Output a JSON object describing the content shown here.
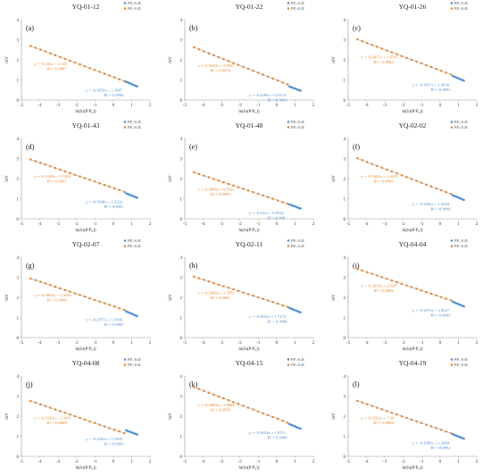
{
  "colors": {
    "blue": "#4f8fd0",
    "orange": "#e8862c",
    "line": "#8c8c8c",
    "axis": "#999999"
  },
  "legend": [
    {
      "series": "blue",
      "label": "P/P₀>0.45"
    },
    {
      "series": "orange",
      "label": "P/P₀<0.45"
    }
  ],
  "axis_labels": {
    "x": "ln(ln(P/P₀))",
    "y": "lnV"
  },
  "chart_data": [
    {
      "id": "YQ-01-12",
      "panel": "(a)",
      "type": "scatter",
      "xlim": [
        -5,
        2
      ],
      "ylim": [
        0,
        4
      ],
      "xticks": [
        "-5",
        "-4",
        "-3",
        "-2",
        "-1",
        "0",
        "1",
        "2"
      ],
      "yticks": [
        "0",
        "1",
        "2",
        "3",
        "4"
      ],
      "orange": {
        "slope": -0.3431,
        "intercept": 1.149,
        "x_start": -4.5,
        "x_end": 0.6,
        "points": 20,
        "eq": "y = -0.343x + 1.149",
        "r2": "R² = 0.9987"
      },
      "blue": {
        "slope": -0.3859,
        "intercept": 1.1807,
        "x_start": 0.7,
        "x_end": 1.3,
        "points": 8,
        "eq": "y = -0.3859x + 1.1807",
        "r2": "R² = 0.9996"
      }
    },
    {
      "id": "YQ-01-22",
      "panel": "(b)",
      "type": "scatter",
      "xlim": [
        -5,
        2
      ],
      "ylim": [
        0,
        4
      ],
      "xticks": [
        "-5",
        "-4",
        "-3",
        "-2",
        "-1",
        "0",
        "1",
        "2"
      ],
      "yticks": [
        "0",
        "1",
        "2",
        "3",
        "4"
      ],
      "orange": {
        "slope": -0.362,
        "intercept": 0.9927,
        "x_start": -4.5,
        "x_end": 0.6,
        "points": 20,
        "eq": "y = -0.3620x + 0.9927",
        "r2": "R² = 0.9978"
      },
      "blue": {
        "slope": -0.3489,
        "intercept": 0.9174,
        "x_start": 0.7,
        "x_end": 1.3,
        "points": 8,
        "eq": "y = -0.3489x + 0.9174",
        "r2": "R² = 0.9963"
      }
    },
    {
      "id": "YQ-01-26",
      "panel": "(c)",
      "type": "scatter",
      "xlim": [
        -5,
        2
      ],
      "ylim": [
        0,
        4
      ],
      "xticks": [
        "-5",
        "-4",
        "-3",
        "-2",
        "-1",
        "0",
        "1",
        "2"
      ],
      "yticks": [
        "0",
        "1",
        "2",
        "3",
        "4"
      ],
      "orange": {
        "slope": -0.3417,
        "intercept": 1.4781,
        "x_start": -4.5,
        "x_end": 0.6,
        "points": 20,
        "eq": "y = -0.3417x + 1.4781",
        "r2": "R² = 0.9983"
      },
      "blue": {
        "slope": -0.3837,
        "intercept": 1.4626,
        "x_start": 0.7,
        "x_end": 1.3,
        "points": 8,
        "eq": "y = -0.3837x + 1.4626",
        "r2": "R² = 0.9995"
      }
    },
    {
      "id": "YQ-01-43",
      "panel": "(d)",
      "type": "scatter",
      "xlim": [
        -5,
        2
      ],
      "ylim": [
        0,
        4
      ],
      "xticks": [
        "-5",
        "-4",
        "-3",
        "-2",
        "-1",
        "0",
        "1",
        "2"
      ],
      "yticks": [
        "0",
        "1",
        "2",
        "3",
        "4"
      ],
      "orange": {
        "slope": -0.3148,
        "intercept": 1.5354,
        "x_start": -4.5,
        "x_end": 0.6,
        "points": 20,
        "eq": "y = -0.3148x + 1.5354",
        "r2": "R² = 0.9967"
      },
      "blue": {
        "slope": -0.3648,
        "intercept": 1.5222,
        "x_start": 0.7,
        "x_end": 1.3,
        "points": 8,
        "eq": "y = -0.3648x + 1.5222",
        "r2": "R² = 0.9991"
      }
    },
    {
      "id": "YQ-01-48",
      "panel": "(e)",
      "type": "scatter",
      "xlim": [
        -5,
        2
      ],
      "ylim": [
        0,
        4
      ],
      "xticks": [
        "-5",
        "-4",
        "-3",
        "-2",
        "-1",
        "0",
        "1",
        "2"
      ],
      "yticks": [
        "0",
        "1",
        "2",
        "3",
        "4"
      ],
      "orange": {
        "slope": -0.3066,
        "intercept": 0.9322,
        "x_start": -4.5,
        "x_end": 0.6,
        "points": 20,
        "eq": "y = -0.3066x + 0.9322",
        "r2": "R² = 0.9989"
      },
      "blue": {
        "slope": -0.341,
        "intercept": 0.9542,
        "x_start": 0.7,
        "x_end": 1.3,
        "points": 8,
        "eq": "y = -0.341x + 0.9542",
        "r2": "R² = 0.998"
      }
    },
    {
      "id": "YQ-02-02",
      "panel": "(f)",
      "type": "scatter",
      "xlim": [
        -5,
        2
      ],
      "ylim": [
        0,
        4
      ],
      "xticks": [
        "-5",
        "-4",
        "-3",
        "-2",
        "-1",
        "0",
        "1",
        "2"
      ],
      "yticks": [
        "0",
        "1",
        "2",
        "3",
        "4"
      ],
      "orange": {
        "slope": -0.3482,
        "intercept": 1.4419,
        "x_start": -4.5,
        "x_end": 0.6,
        "points": 20,
        "eq": "y = -0.3482x + 1.4419",
        "r2": "R² = 0.9983"
      },
      "blue": {
        "slope": -0.3802,
        "intercept": 1.4344,
        "x_start": 0.7,
        "x_end": 1.3,
        "points": 8,
        "eq": "y = -0.3802x + 1.4344",
        "r2": "R² = 0.9998"
      }
    },
    {
      "id": "YQ-02-07",
      "panel": "(g)",
      "type": "scatter",
      "xlim": [
        -5,
        2
      ],
      "ylim": [
        0,
        4
      ],
      "xticks": [
        "-5",
        "-4",
        "-3",
        "-2",
        "-1",
        "0",
        "1",
        "2"
      ],
      "yticks": [
        "0",
        "1",
        "2",
        "3",
        "4"
      ],
      "orange": {
        "slope": -0.3062,
        "intercept": 1.5636,
        "x_start": -4.5,
        "x_end": 0.6,
        "points": 20,
        "eq": "y = -0.3062x + 1.5636",
        "r2": "R² = 0.9989"
      },
      "blue": {
        "slope": -0.3977,
        "intercept": 1.5849,
        "x_start": 0.7,
        "x_end": 1.3,
        "points": 8,
        "eq": "y = -0.3977x + 1.5849",
        "r2": "R² = 0.9987"
      }
    },
    {
      "id": "YQ-02-11",
      "panel": "(h)",
      "type": "scatter",
      "xlim": [
        -5,
        2
      ],
      "ylim": [
        0,
        4
      ],
      "xticks": [
        "-5",
        "-4",
        "-3",
        "-2",
        "-1",
        "0",
        "1",
        "2"
      ],
      "yticks": [
        "0",
        "1",
        "2",
        "3",
        "4"
      ],
      "orange": {
        "slope": -0.2946,
        "intercept": 1.7053,
        "x_start": -4.5,
        "x_end": 0.6,
        "points": 20,
        "eq": "y = -0.2946x + 1.7053",
        "r2": "R² = 0.9982"
      },
      "blue": {
        "slope": -0.3635,
        "intercept": 1.7275,
        "x_start": 0.7,
        "x_end": 1.3,
        "points": 8,
        "eq": "y = -0.3635x + 1.7275",
        "r2": "R² = 0.9998"
      }
    },
    {
      "id": "YQ-04-04",
      "panel": "(i)",
      "type": "scatter",
      "xlim": [
        -5,
        2
      ],
      "ylim": [
        0,
        4
      ],
      "xticks": [
        "-5",
        "-4",
        "-3",
        "-2",
        "-1",
        "0",
        "1",
        "2"
      ],
      "yticks": [
        "0",
        "1",
        "2",
        "3",
        "4"
      ],
      "orange": {
        "slope": -0.3076,
        "intercept": 2.0347,
        "x_start": -4.5,
        "x_end": 0.6,
        "points": 20,
        "eq": "y = -0.3076x + 2.0347",
        "r2": "R² = 0.9989"
      },
      "blue": {
        "slope": -0.3873,
        "intercept": 2.0527,
        "x_start": 0.7,
        "x_end": 1.3,
        "points": 8,
        "eq": "y = -0.3873x + 2.0527",
        "r2": "R² = 0.9943"
      }
    },
    {
      "id": "YQ-04-08",
      "panel": "(j)",
      "type": "scatter",
      "xlim": [
        -5,
        2
      ],
      "ylim": [
        0,
        4
      ],
      "xticks": [
        "-5",
        "-4",
        "-3",
        "-2",
        "-1",
        "0",
        "1",
        "2"
      ],
      "yticks": [
        "0",
        "1",
        "2",
        "3",
        "4"
      ],
      "orange": {
        "slope": -0.3142,
        "intercept": 1.3415,
        "x_start": -4.5,
        "x_end": 0.6,
        "points": 20,
        "eq": "y = -0.3142x + 1.3415",
        "r2": "R² = 0.9989"
      },
      "blue": {
        "slope": -0.3502,
        "intercept": 1.5405,
        "x_start": 0.7,
        "x_end": 1.3,
        "points": 8,
        "eq": "y = -0.3502x + 1.5405",
        "r2": "R² = 0.9989"
      }
    },
    {
      "id": "YQ-04-15",
      "panel": "(k)",
      "type": "scatter",
      "xlim": [
        -5,
        2
      ],
      "ylim": [
        0,
        4
      ],
      "xticks": [
        "-5",
        "-4",
        "-3",
        "-2",
        "-1",
        "0",
        "1",
        "2"
      ],
      "yticks": [
        "0",
        "1",
        "2",
        "3",
        "4"
      ],
      "orange": {
        "slope": -0.3469,
        "intercept": 1.8864,
        "x_start": -4.5,
        "x_end": 0.6,
        "points": 20,
        "eq": "y = -0.3469x + 1.8864",
        "r2": "R² = 0.9979"
      },
      "blue": {
        "slope": -0.3814,
        "intercept": 1.8711,
        "x_start": 0.7,
        "x_end": 1.3,
        "points": 8,
        "eq": "y = -0.3814x + 1.8711",
        "r2": "R² = 0.9998"
      }
    },
    {
      "id": "YQ-04-19",
      "panel": "(l)",
      "type": "scatter",
      "xlim": [
        -5,
        2
      ],
      "ylim": [
        0,
        4
      ],
      "xticks": [
        "-5",
        "-4",
        "-3",
        "-2",
        "-1",
        "0",
        "1",
        "2"
      ],
      "yticks": [
        "0",
        "1",
        "2",
        "3",
        "4"
      ],
      "orange": {
        "slope": -0.3162,
        "intercept": 1.34,
        "x_start": -4.5,
        "x_end": 0.6,
        "points": 20,
        "eq": "y = -0.3162x + 1.34",
        "r2": "R² = 0.9988"
      },
      "blue": {
        "slope": -0.3584,
        "intercept": 1.3484,
        "x_start": 0.7,
        "x_end": 1.3,
        "points": 8,
        "eq": "y = -0.3584x + 1.3484",
        "r2": "R² = 0.9992"
      }
    }
  ]
}
